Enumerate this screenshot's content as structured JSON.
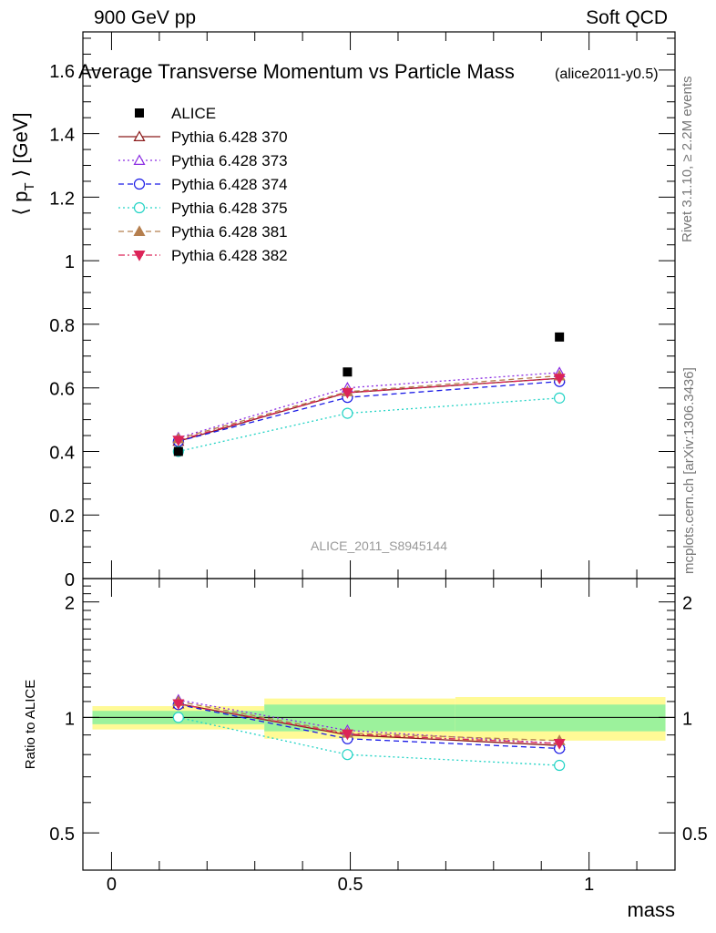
{
  "header": {
    "left": "900 GeV pp",
    "right": "Soft QCD"
  },
  "side": {
    "rivet": "Rivet 3.1.10, ≥ 2.2M events",
    "mcplots": "mcplots.cern.ch [arXiv:1306.3436]"
  },
  "chart_data": {
    "type": "line",
    "title": "Average Transverse Momentum vs Particle Mass",
    "title_tag": "(alice2011-y0.5)",
    "watermark": "ALICE_2011_S8945144",
    "xlabel": "mass",
    "ylabel": "⟨ p_T ⟩ [GeV]",
    "ratio_ylabel": "Ratio to ALICE",
    "xlim": [
      -0.06,
      1.18
    ],
    "ylim": [
      0,
      1.72
    ],
    "ratio_ylim": [
      0.4,
      2.3
    ],
    "ratio_log": true,
    "x_ticks": [
      "0",
      "0.5",
      "1"
    ],
    "y_ticks": [
      "0",
      "0.2",
      "0.4",
      "0.6",
      "0.8",
      "1",
      "1.2",
      "1.4",
      "1.6"
    ],
    "ratio_ticks": [
      "0.5",
      "1",
      "2"
    ],
    "x": [
      0.14,
      0.494,
      0.938
    ],
    "data_series": {
      "name": "ALICE",
      "values": [
        0.4,
        0.65,
        0.76
      ],
      "band_edges": [
        -0.04,
        0.32,
        0.72,
        1.16
      ],
      "band_inner": [
        0.04,
        0.08,
        0.08
      ],
      "band_outer": [
        0.07,
        0.12,
        0.13
      ]
    },
    "series": [
      {
        "name": "Pythia 6.428 370",
        "color": "#8b1a1a",
        "dash": "solid",
        "marker": "triangle-up-open",
        "values": [
          0.432,
          0.585,
          0.63
        ],
        "ratio": [
          1.085,
          0.9,
          0.845
        ]
      },
      {
        "name": "Pythia 6.428 373",
        "color": "#8a2be2",
        "dash": "dotted",
        "marker": "triangle-up-open",
        "values": [
          0.443,
          0.6,
          0.648
        ],
        "ratio": [
          1.11,
          0.925,
          0.855
        ]
      },
      {
        "name": "Pythia 6.428 374",
        "color": "#1a1ae6",
        "dash": "dashed",
        "marker": "circle-open",
        "values": [
          0.432,
          0.57,
          0.62
        ],
        "ratio": [
          1.08,
          0.88,
          0.83
        ]
      },
      {
        "name": "Pythia 6.428 375",
        "color": "#22d3c5",
        "dash": "dotted",
        "marker": "circle-open",
        "values": [
          0.4,
          0.52,
          0.568
        ],
        "ratio": [
          1.0,
          0.8,
          0.75
        ]
      },
      {
        "name": "Pythia 6.428 381",
        "color": "#b57f4e",
        "dash": "dashed",
        "marker": "triangle-up-filled",
        "values": [
          0.44,
          0.588,
          0.638
        ],
        "ratio": [
          1.1,
          0.91,
          0.87
        ]
      },
      {
        "name": "Pythia 6.428 382",
        "color": "#dc2458",
        "dash": "dashdot",
        "marker": "triangle-down-filled",
        "values": [
          0.435,
          0.585,
          0.63
        ],
        "ratio": [
          1.085,
          0.905,
          0.855
        ]
      }
    ],
    "colors": {
      "data": "#000000",
      "band_inner": "#9cf29c",
      "band_outer": "#fffa96"
    },
    "grid": false,
    "legend_position": "top-left"
  }
}
